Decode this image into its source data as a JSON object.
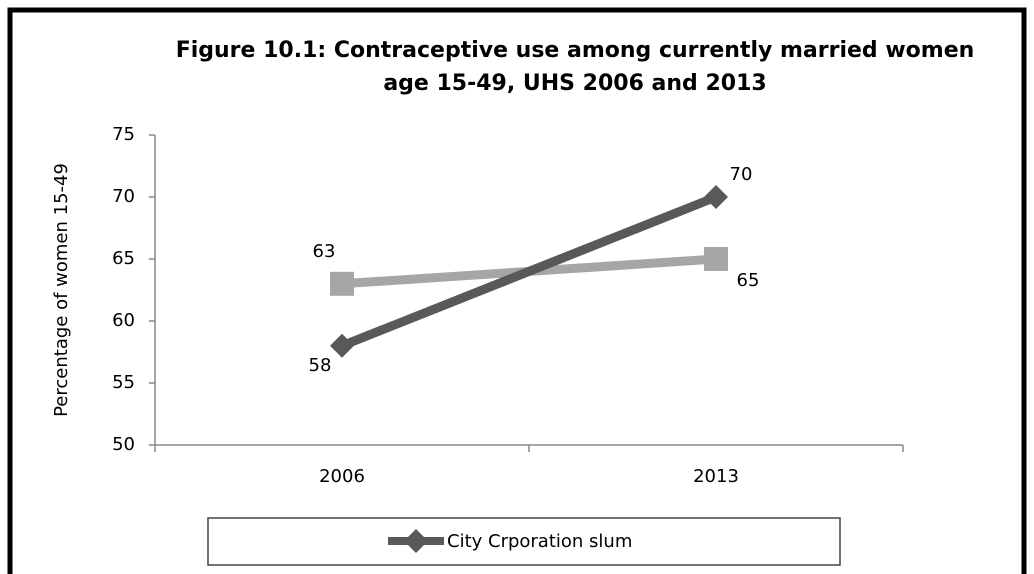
{
  "chart_data": {
    "type": "line",
    "title": "Figure 10.1: Contraceptive use among currently married women age 15-49, UHS 2006 and 2013",
    "y_label": "Percentage of women 15-49",
    "categories": [
      "2006",
      "2013"
    ],
    "series": [
      {
        "name": "City Crporation slum",
        "color": "#595959",
        "marker": "diamond",
        "values": [
          58,
          70
        ]
      },
      {
        "color": "#a6a6a6",
        "marker": "square",
        "values": [
          63,
          65
        ]
      }
    ],
    "ylim": [
      50,
      75
    ],
    "yticks": [
      50,
      55,
      60,
      65,
      70,
      75
    ],
    "grid": false
  }
}
